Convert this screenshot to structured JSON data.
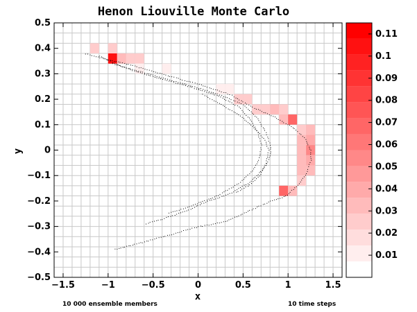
{
  "chart_data": {
    "type": "heatmap",
    "title": "Henon Liouville Monte Carlo",
    "xlabel": "x",
    "ylabel": "y",
    "xlim": [
      -1.6,
      1.6
    ],
    "ylim": [
      -0.5,
      0.5
    ],
    "grid": true,
    "bin_size": {
      "dx": 0.1,
      "dy": 0.04
    },
    "x_ticks": [
      -1.5,
      -1,
      -0.5,
      0,
      0.5,
      1,
      1.5
    ],
    "y_ticks": [
      -0.5,
      -0.4,
      -0.3,
      -0.2,
      -0.1,
      0,
      0.1,
      0.2,
      0.3,
      0.4,
      0.5
    ],
    "colorbar": {
      "colors": [
        "#ffffff",
        "#ffeeee",
        "#ffdddd",
        "#ffcccc",
        "#ffbbbb",
        "#ffaaaa",
        "#ff9999",
        "#ff8888",
        "#ff7777",
        "#ff6666",
        "#ff5555",
        "#ff4444",
        "#ff3333",
        "#ff2222",
        "#ff1111",
        "#ff0000"
      ],
      "ticks": [
        0.01,
        0.02,
        0.03,
        0.04,
        0.05,
        0.06,
        0.07,
        0.08,
        0.09,
        0.1,
        0.11
      ],
      "range": [
        0,
        0.115
      ]
    },
    "cells": [
      {
        "x": -1.2,
        "y": 0.38,
        "v": 0.02
      },
      {
        "x": -1.0,
        "y": 0.38,
        "v": 0.02
      },
      {
        "x": -1.0,
        "y": 0.34,
        "v": 0.11
      },
      {
        "x": -0.9,
        "y": 0.34,
        "v": 0.03
      },
      {
        "x": -0.8,
        "y": 0.34,
        "v": 0.02
      },
      {
        "x": -0.7,
        "y": 0.34,
        "v": 0.02
      },
      {
        "x": -0.7,
        "y": 0.3,
        "v": 0.01
      },
      {
        "x": -0.4,
        "y": 0.3,
        "v": 0.01
      },
      {
        "x": 0.2,
        "y": 0.22,
        "v": 0.01
      },
      {
        "x": 0.3,
        "y": 0.22,
        "v": 0.01
      },
      {
        "x": 0.4,
        "y": 0.18,
        "v": 0.02
      },
      {
        "x": 0.5,
        "y": 0.18,
        "v": 0.02
      },
      {
        "x": 0.6,
        "y": 0.14,
        "v": 0.02
      },
      {
        "x": 0.7,
        "y": 0.14,
        "v": 0.02
      },
      {
        "x": 0.8,
        "y": 0.14,
        "v": 0.03
      },
      {
        "x": 0.9,
        "y": 0.14,
        "v": 0.02
      },
      {
        "x": 0.9,
        "y": 0.1,
        "v": 0.03
      },
      {
        "x": 1.0,
        "y": 0.1,
        "v": 0.07
      },
      {
        "x": 1.1,
        "y": 0.06,
        "v": 0.02
      },
      {
        "x": 1.2,
        "y": 0.06,
        "v": 0.03
      },
      {
        "x": 1.1,
        "y": 0.02,
        "v": 0.03
      },
      {
        "x": 1.2,
        "y": 0.02,
        "v": 0.04
      },
      {
        "x": 1.1,
        "y": -0.02,
        "v": 0.03
      },
      {
        "x": 1.2,
        "y": -0.02,
        "v": 0.05
      },
      {
        "x": 1.1,
        "y": -0.06,
        "v": 0.03
      },
      {
        "x": 1.2,
        "y": -0.06,
        "v": 0.04
      },
      {
        "x": 1.1,
        "y": -0.1,
        "v": 0.03
      },
      {
        "x": 1.2,
        "y": -0.1,
        "v": 0.03
      },
      {
        "x": 1.1,
        "y": -0.14,
        "v": 0.02
      },
      {
        "x": 0.9,
        "y": -0.18,
        "v": 0.07
      },
      {
        "x": 1.0,
        "y": -0.18,
        "v": 0.03
      }
    ],
    "scatter_curves": [
      {
        "name": "",
        "points": [
          [
            -1.25,
            0.38
          ],
          [
            -1.05,
            0.36
          ],
          [
            -0.8,
            0.34
          ],
          [
            -0.5,
            0.31
          ],
          [
            -0.2,
            0.28
          ],
          [
            0.1,
            0.25
          ],
          [
            0.35,
            0.22
          ],
          [
            0.6,
            0.17
          ],
          [
            0.85,
            0.13
          ],
          [
            1.05,
            0.09
          ],
          [
            1.18,
            0.05
          ],
          [
            1.25,
            0.0
          ],
          [
            1.25,
            -0.04
          ],
          [
            1.2,
            -0.09
          ],
          [
            1.12,
            -0.13
          ],
          [
            0.97,
            -0.18
          ],
          [
            0.8,
            -0.2
          ],
          [
            0.55,
            -0.24
          ],
          [
            0.3,
            -0.28
          ],
          [
            0.0,
            -0.3
          ],
          [
            -0.3,
            -0.33
          ],
          [
            -0.6,
            -0.36
          ],
          [
            -0.95,
            -0.39
          ]
        ]
      },
      {
        "name": "",
        "points": [
          [
            -1.1,
            0.37
          ],
          [
            -0.85,
            0.33
          ],
          [
            -0.55,
            0.3
          ],
          [
            -0.25,
            0.27
          ],
          [
            0.05,
            0.24
          ],
          [
            0.3,
            0.21
          ],
          [
            0.5,
            0.18
          ],
          [
            0.65,
            0.13
          ],
          [
            0.75,
            0.07
          ],
          [
            0.8,
            0.02
          ],
          [
            0.8,
            -0.02
          ],
          [
            0.75,
            -0.06
          ],
          [
            0.65,
            -0.1
          ],
          [
            0.55,
            -0.13
          ],
          [
            0.35,
            -0.17
          ],
          [
            0.1,
            -0.2
          ],
          [
            -0.15,
            -0.24
          ],
          [
            -0.4,
            -0.27
          ],
          [
            -0.6,
            -0.29
          ]
        ]
      },
      {
        "name": "",
        "points": [
          [
            -0.95,
            0.34
          ],
          [
            -0.6,
            0.3
          ],
          [
            -0.3,
            0.27
          ],
          [
            0.0,
            0.24
          ],
          [
            0.25,
            0.21
          ],
          [
            0.45,
            0.17
          ],
          [
            0.58,
            0.12
          ],
          [
            0.66,
            0.07
          ],
          [
            0.7,
            0.02
          ],
          [
            0.68,
            -0.03
          ],
          [
            0.6,
            -0.08
          ],
          [
            0.45,
            -0.13
          ],
          [
            0.2,
            -0.18
          ],
          [
            -0.1,
            -0.22
          ],
          [
            -0.35,
            -0.25
          ]
        ]
      },
      {
        "name": "",
        "points": [
          [
            0.05,
            0.22
          ],
          [
            0.25,
            0.18
          ],
          [
            0.45,
            0.14
          ],
          [
            0.62,
            0.09
          ],
          [
            0.74,
            0.04
          ],
          [
            0.78,
            0.0
          ],
          [
            0.75,
            -0.05
          ],
          [
            0.68,
            -0.1
          ],
          [
            0.55,
            -0.14
          ],
          [
            0.4,
            -0.17
          ]
        ]
      }
    ]
  },
  "footer": {
    "left_note": "10 000 ensemble members",
    "right_note": "10 time steps"
  }
}
